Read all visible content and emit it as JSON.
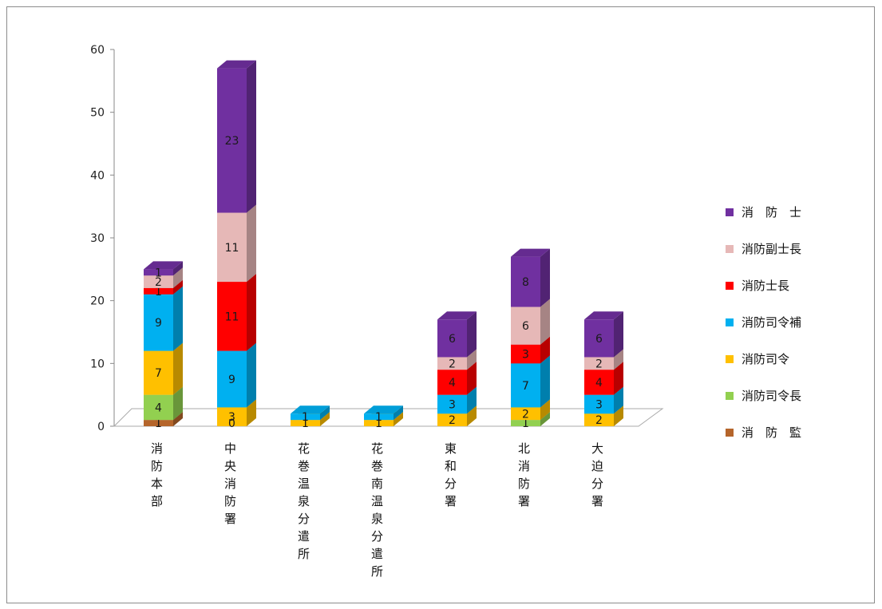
{
  "chart_data": {
    "type": "bar",
    "stacked": true,
    "three_d": true,
    "title": "",
    "xlabel": "",
    "ylabel": "",
    "ylim": [
      0,
      60
    ],
    "yticks": [
      0,
      10,
      20,
      30,
      40,
      50,
      60
    ],
    "legend_position": "right",
    "categories": [
      "消防本部",
      "中央消防署",
      "花巻温泉分遣所",
      "花巻南温泉分遣所",
      "東和分署",
      "北消防署",
      "大迫分署"
    ],
    "series": [
      {
        "name": "消　防　監",
        "color": "#b5652b",
        "values": [
          1,
          0,
          0,
          0,
          0,
          0,
          0
        ]
      },
      {
        "name": "消防司令長",
        "color": "#92d050",
        "values": [
          4,
          0,
          0,
          0,
          0,
          1,
          0
        ]
      },
      {
        "name": "消防司令",
        "color": "#ffc000",
        "values": [
          7,
          3,
          1,
          1,
          2,
          2,
          2
        ]
      },
      {
        "name": "消防司令補",
        "color": "#00b0f0",
        "values": [
          9,
          9,
          1,
          1,
          3,
          7,
          3
        ]
      },
      {
        "name": "消防士長",
        "color": "#ff0000",
        "values": [
          1,
          11,
          0,
          0,
          4,
          3,
          4
        ]
      },
      {
        "name": "消防副士長",
        "color": "#e6b8b7",
        "values": [
          2,
          11,
          0,
          0,
          2,
          6,
          2
        ]
      },
      {
        "name": "消　防　士",
        "color": "#7030a0",
        "values": [
          1,
          23,
          0,
          0,
          6,
          8,
          6
        ]
      }
    ],
    "data_labels": true
  }
}
